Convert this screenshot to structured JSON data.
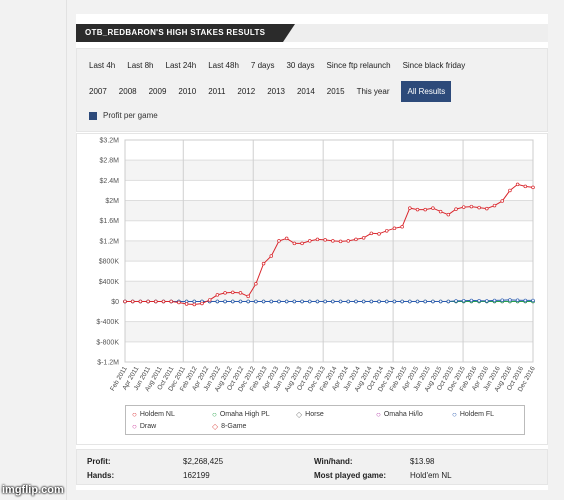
{
  "title": "OTB_REDBARON'S HIGH STAKES RESULTS",
  "periods": [
    "Last 4h",
    "Last 8h",
    "Last 24h",
    "Last 48h",
    "7 days",
    "30 days",
    "Since ftp relaunch",
    "Since black friday"
  ],
  "years": [
    "2007",
    "2008",
    "2009",
    "2010",
    "2011",
    "2012",
    "2013",
    "2014",
    "2015",
    "This year",
    "All Results"
  ],
  "active_filter": "All Results",
  "profit_per_game_label": "Profit per game",
  "legend": [
    {
      "label": "Holdem NL",
      "color": "#d9262c",
      "symbol": "○"
    },
    {
      "label": "Omaha High PL",
      "color": "#27a34a",
      "symbol": "○"
    },
    {
      "label": "Horse",
      "color": "#888888",
      "symbol": "◇"
    },
    {
      "label": "Omaha Hi/lo",
      "color": "#b13aa8",
      "symbol": "○"
    },
    {
      "label": "Holdem FL",
      "color": "#2a5bb0",
      "symbol": "○"
    },
    {
      "label": "Draw",
      "color": "#cc3399",
      "symbol": "○"
    },
    {
      "label": "8-Game",
      "color": "#e0605a",
      "symbol": "◇"
    }
  ],
  "stats": {
    "profit_label": "Profit:",
    "profit_value": "$2,268,425",
    "hands_label": "Hands:",
    "hands_value": "162199",
    "winhand_label": "Win/hand:",
    "winhand_value": "$13.98",
    "most_played_label": "Most played game:",
    "most_played_value": "Hold'em NL"
  },
  "watermark": "imgflip.com",
  "chart_data": {
    "type": "line",
    "yticks": [
      "$3.2M",
      "$2.8M",
      "$2.4M",
      "$2M",
      "$1.6M",
      "$1.2M",
      "$800K",
      "$400K",
      "$0",
      "$-400K",
      "$-800K",
      "$-1.2M"
    ],
    "ylim": [
      -1200000,
      3200000
    ],
    "xticks": [
      "Feb 2011",
      "Apr 2011",
      "Jun 2011",
      "Aug 2011",
      "Oct 2011",
      "Dec 2011",
      "Feb 2012",
      "Apr 2012",
      "Jun 2012",
      "Aug 2012",
      "Oct 2012",
      "Dec 2012",
      "Feb 2013",
      "Apr 2013",
      "Jun 2013",
      "Aug 2013",
      "Oct 2013",
      "Dec 2013",
      "Feb 2014",
      "Apr 2014",
      "Jun 2014",
      "Aug 2014",
      "Oct 2014",
      "Dec 2014",
      "Feb 2015",
      "Apr 2015",
      "Jun 2015",
      "Aug 2015",
      "Oct 2015",
      "Dec 2015",
      "Feb 2016",
      "Apr 2016",
      "Jun 2016",
      "Aug 2016",
      "Oct 2016",
      "Dec 2016"
    ],
    "series": [
      {
        "name": "Holdem NL",
        "color": "#d9262c",
        "values": [
          0,
          0,
          0,
          0,
          0,
          0,
          0,
          -20000,
          -50000,
          -60000,
          -40000,
          30000,
          130000,
          170000,
          180000,
          170000,
          100000,
          350000,
          750000,
          900000,
          1200000,
          1250000,
          1150000,
          1150000,
          1200000,
          1230000,
          1220000,
          1200000,
          1190000,
          1200000,
          1230000,
          1260000,
          1350000,
          1340000,
          1400000,
          1450000,
          1480000,
          1850000,
          1820000,
          1820000,
          1850000,
          1780000,
          1720000,
          1830000,
          1870000,
          1880000,
          1860000,
          1840000,
          1900000,
          1990000,
          2200000,
          2320000,
          2280000,
          2260000
        ]
      },
      {
        "name": "Holdem FL",
        "color": "#2a5bb0",
        "values": [
          0,
          0,
          0,
          0,
          0,
          0,
          0,
          0,
          0,
          0,
          0,
          0,
          0,
          0,
          0,
          0,
          0,
          0,
          0,
          0,
          0,
          0,
          0,
          0,
          0,
          0,
          0,
          0,
          0,
          0,
          0,
          0,
          0,
          0,
          0,
          0,
          0,
          0,
          0,
          0,
          0,
          0,
          0,
          10000,
          15000,
          20000,
          15000,
          10000,
          20000,
          25000,
          30000,
          25000,
          20000,
          20000
        ]
      },
      {
        "name": "Omaha High PL",
        "color": "#27a34a",
        "values": [
          0,
          0,
          0,
          0,
          0,
          0,
          0,
          0,
          0,
          0,
          0,
          0,
          0,
          0,
          0,
          0,
          0,
          0,
          0,
          0,
          0,
          0,
          0,
          0,
          0,
          0,
          0,
          0,
          0,
          0,
          0,
          0,
          0,
          0,
          0,
          0,
          0,
          0,
          0,
          0,
          0,
          0,
          0,
          0,
          0,
          0,
          0,
          0,
          0,
          0,
          0,
          0,
          0,
          0
        ]
      },
      {
        "name": "Omaha Hi/lo",
        "color": "#b13aa8",
        "values": [
          0,
          0,
          0,
          0,
          0,
          0,
          0,
          0,
          0,
          0,
          0,
          0,
          0,
          0,
          0,
          0,
          0,
          0,
          0,
          0,
          0,
          0,
          0,
          0,
          0,
          0,
          0,
          0,
          0,
          0,
          0,
          0,
          0,
          0,
          0,
          0,
          0,
          0,
          0,
          0,
          0,
          0,
          0,
          0,
          0,
          0,
          0,
          0,
          0,
          0,
          0,
          0,
          0,
          0
        ]
      }
    ]
  }
}
